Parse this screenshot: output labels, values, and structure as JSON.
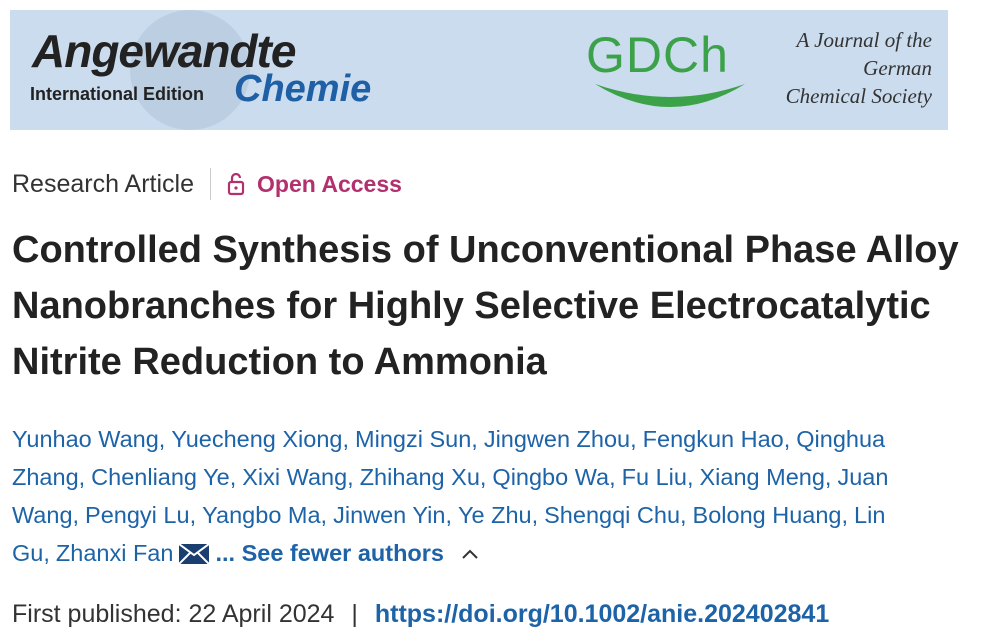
{
  "banner": {
    "journal": "Angewandte",
    "edition": "International Edition",
    "journal_sub": "Chemie",
    "society_logo": "GDCh",
    "society_lines": [
      "A Journal of the",
      "German",
      "Chemical Society"
    ]
  },
  "article_type": "Research Article",
  "access": "Open Access",
  "title": "Controlled Synthesis of Unconventional Phase Alloy Nanobranches for Highly Selective Electrocatalytic Nitrite Reduction to Ammonia",
  "authors": [
    "Yunhao Wang,",
    "Yuecheng Xiong,",
    "Mingzi Sun,",
    "Jingwen Zhou,",
    "Fengkun Hao,",
    "Qinghua Zhang,",
    "Chenliang Ye,",
    "Xixi Wang,",
    "Zhihang Xu,",
    "Qingbo Wa,",
    "Fu Liu,",
    "Xiang Meng,",
    "Juan Wang,",
    "Pengyi Lu,",
    "Yangbo Ma,",
    "Jinwen Yin,",
    "Ye Zhu,",
    "Shengqi Chu,",
    "Bolong Huang,",
    "Lin Gu,",
    "Zhanxi Fan"
  ],
  "see_fewer": "... See fewer authors",
  "published": {
    "label": "First published:",
    "date": "22 April 2024",
    "separator": "|",
    "doi": "https://doi.org/10.1002/anie.202402841"
  }
}
